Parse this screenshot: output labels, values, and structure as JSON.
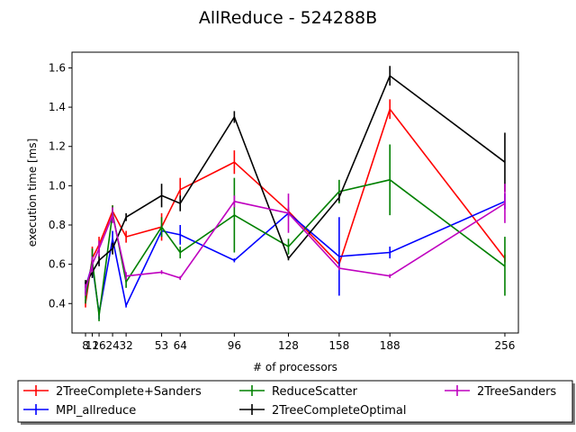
{
  "chart_data": {
    "type": "line",
    "title": "AllReduce - 524288B",
    "xlabel": "# of processors",
    "ylabel": "execution time [ms]",
    "xlim": [
      0,
      264
    ],
    "ylim": [
      0.25,
      1.68
    ],
    "x": [
      8,
      12,
      16,
      24,
      32,
      53,
      64,
      96,
      128,
      158,
      188,
      256
    ],
    "x_tick_labels": [
      "8",
      "12",
      "16",
      "24",
      "32",
      "53",
      "64",
      "96",
      "128",
      "158",
      "188",
      "256"
    ],
    "y_ticks": [
      0.4,
      0.6,
      0.8,
      1.0,
      1.2,
      1.4,
      1.6
    ],
    "y_tick_labels": [
      "0.4",
      "0.6",
      "0.8",
      "1.0",
      "1.2",
      "1.4",
      "1.6"
    ],
    "error_bars": true,
    "legend_placement": "below",
    "series": [
      {
        "name": "2TreeComplete+Sanders",
        "color": "#ff0000",
        "values": [
          0.4,
          0.63,
          0.7,
          0.87,
          0.74,
          0.79,
          0.98,
          1.12,
          0.87,
          0.6,
          1.39,
          0.63
        ],
        "errors": [
          0.02,
          0.06,
          0.04,
          0.03,
          0.03,
          0.07,
          0.06,
          0.06,
          0.02,
          0.02,
          0.05,
          0.02
        ]
      },
      {
        "name": "MPI_allreduce",
        "color": "#0000ff",
        "values": [
          0.48,
          0.6,
          0.35,
          0.73,
          0.39,
          0.77,
          0.75,
          0.62,
          0.86,
          0.64,
          0.66,
          0.92
        ],
        "errors": [
          0.03,
          0.05,
          0.03,
          0.04,
          0.01,
          0.03,
          0.05,
          0.01,
          0.02,
          0.2,
          0.03,
          0.04
        ]
      },
      {
        "name": "ReduceScatter",
        "color": "#008000",
        "values": [
          0.43,
          0.62,
          0.34,
          0.86,
          0.51,
          0.79,
          0.66,
          0.85,
          0.69,
          0.97,
          1.03,
          0.59
        ],
        "errors": [
          0.03,
          0.06,
          0.03,
          0.04,
          0.03,
          0.05,
          0.03,
          0.19,
          0.04,
          0.06,
          0.18,
          0.15
        ]
      },
      {
        "name": "2TreeCompleteOptimal",
        "color": "#000000",
        "values": [
          0.5,
          0.56,
          0.62,
          0.68,
          0.84,
          0.95,
          0.91,
          1.35,
          0.63,
          0.94,
          1.56,
          1.12
        ],
        "errors": [
          0.02,
          0.03,
          0.03,
          0.03,
          0.02,
          0.06,
          0.04,
          0.03,
          0.01,
          0.02,
          0.05,
          0.15
        ]
      },
      {
        "name": "2TreeSanders",
        "color": "#bf00bf",
        "values": [
          0.47,
          0.6,
          0.68,
          0.85,
          0.54,
          0.56,
          0.53,
          0.92,
          0.86,
          0.58,
          0.54,
          0.91
        ],
        "errors": [
          0.03,
          0.04,
          0.04,
          0.04,
          0.02,
          0.01,
          0.01,
          0.03,
          0.1,
          0.01,
          0.01,
          0.1
        ]
      }
    ]
  }
}
